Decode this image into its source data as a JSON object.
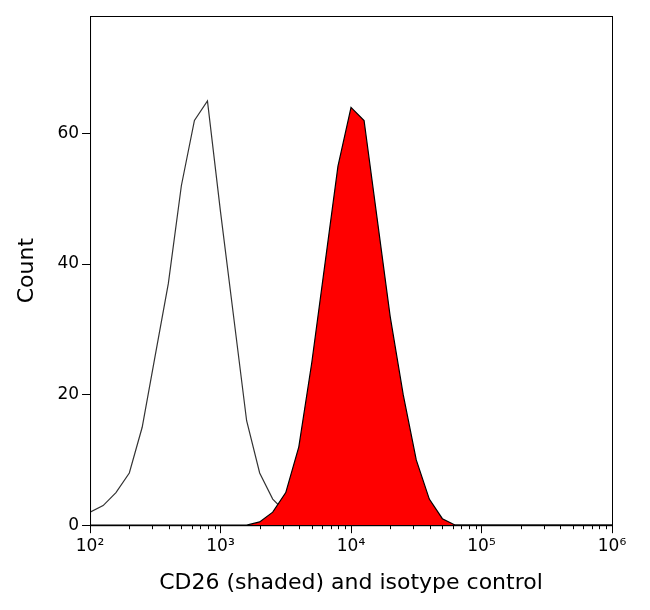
{
  "chart_data": {
    "type": "line",
    "x_label": "CD26 (shaded) and isotype control",
    "y_label": "Count",
    "x": [
      100,
      126,
      158,
      200,
      251,
      316,
      398,
      501,
      631,
      794,
      1000,
      1259,
      1585,
      1995,
      2512,
      3162,
      3981,
      5012,
      6310,
      7943,
      10000,
      12589,
      15849,
      19953,
      25119,
      31623,
      39811,
      50119,
      63096,
      79433,
      100000,
      125893,
      158489,
      199526,
      251189,
      316228,
      398107,
      501187,
      630957,
      794328,
      1000000
    ],
    "series": [
      {
        "name": "isotype control",
        "type": "line",
        "color": "#333333",
        "values": [
          2,
          3,
          5,
          8,
          15,
          26,
          37,
          52,
          62,
          65,
          48,
          32,
          16,
          8,
          4,
          2,
          1,
          0.5,
          0,
          0,
          0,
          0,
          0,
          0,
          0,
          0,
          0,
          0,
          0,
          0,
          0,
          0,
          0,
          0,
          0,
          0,
          0,
          0,
          0,
          0,
          0
        ]
      },
      {
        "name": "CD26",
        "type": "area",
        "color": "#ff0000",
        "values": [
          0,
          0,
          0,
          0,
          0,
          0,
          0,
          0,
          0,
          0,
          0,
          0,
          0,
          0.5,
          2,
          5,
          12,
          25,
          40,
          55,
          64,
          62,
          47,
          32,
          20,
          10,
          4,
          1,
          0,
          0,
          0,
          0,
          0,
          0,
          0,
          0,
          0,
          0,
          0,
          0,
          0
        ]
      }
    ],
    "log": "x",
    "xlim": [
      100,
      1000000
    ],
    "xticks": [
      {
        "value": 100,
        "label": "10²"
      },
      {
        "value": 1000,
        "label": "10³"
      },
      {
        "value": 10000,
        "label": "10⁴"
      },
      {
        "value": 100000,
        "label": "10⁵"
      },
      {
        "value": 1000000,
        "label": "10⁶"
      }
    ],
    "ylim": [
      0,
      78
    ],
    "yticks": [
      0,
      20,
      40,
      60
    ],
    "grid": false
  }
}
